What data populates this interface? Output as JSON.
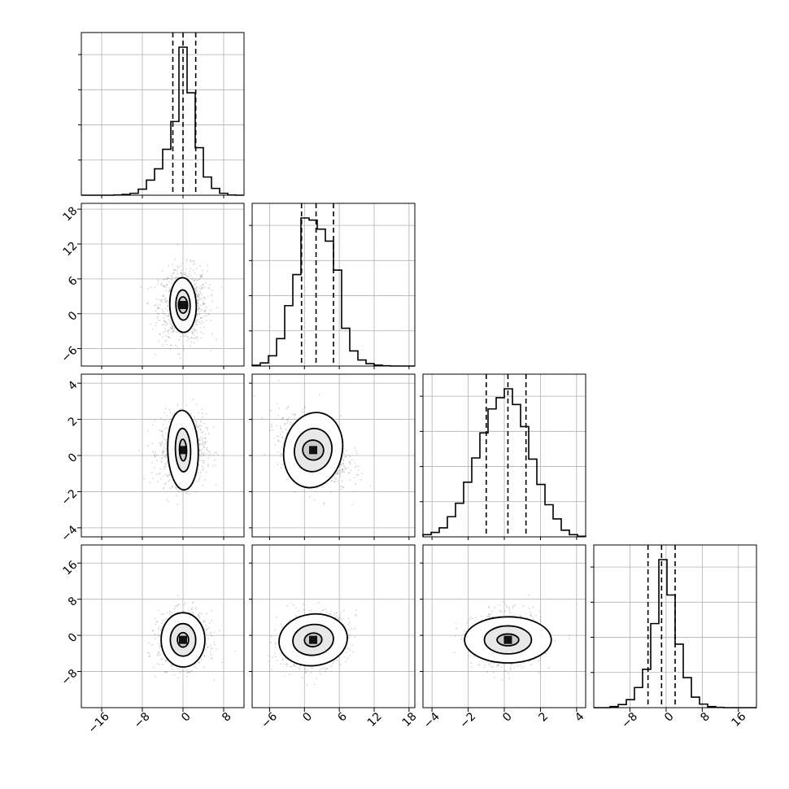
{
  "chart_data": {
    "type": "corner",
    "n_params": 4,
    "grid": true,
    "quantile_style": "dashed",
    "contour_levels": 4,
    "params": [
      {
        "index": 0,
        "label": "",
        "range": [
          -20,
          12
        ],
        "ticks": [
          -16,
          -8,
          0,
          8
        ],
        "tick_labels": [
          "−16",
          "−8",
          "0",
          "8"
        ],
        "quantiles": [
          -2,
          0,
          2.5
        ],
        "hist": {
          "edges": [
            -20,
            -18.4,
            -16.8,
            -15.2,
            -13.6,
            -12,
            -10.4,
            -8.8,
            -7.2,
            -5.6,
            -4,
            -2.4,
            -0.8,
            0.8,
            2.4,
            4,
            5.6,
            7.2,
            8.8,
            10.4,
            12
          ],
          "counts": [
            0,
            0,
            0,
            0,
            0.2,
            0.5,
            1.3,
            4.1,
            10.2,
            17.8,
            31,
            49.8,
            100,
            69.2,
            32.1,
            12.3,
            4.6,
            1.3,
            0.2,
            0,
            0
          ]
        }
      },
      {
        "index": 1,
        "label": "",
        "range": [
          -9,
          19
        ],
        "ticks": [
          -6,
          0,
          6,
          12,
          18
        ],
        "tick_labels": [
          "−6",
          "0",
          "6",
          "12",
          "18"
        ],
        "quantiles": [
          -0.5,
          2,
          5
        ],
        "hist": {
          "edges": [
            -9,
            -7.6,
            -6.2,
            -4.8,
            -3.4,
            -2,
            -0.6,
            0.8,
            2.2,
            3.6,
            5,
            6.4,
            7.8,
            9.2,
            10.6,
            12,
            13.4,
            14.8,
            16.2,
            17.6,
            19
          ],
          "counts": [
            0.5,
            2.1,
            6.9,
            18.5,
            40.8,
            61.8,
            100,
            98.6,
            92.5,
            84.4,
            64.8,
            25.5,
            10.2,
            4.1,
            1.6,
            0.6,
            0.2,
            0,
            0,
            0
          ]
        }
      },
      {
        "index": 2,
        "label": "",
        "range": [
          -4.5,
          4.5
        ],
        "ticks": [
          -4,
          -2,
          0,
          2,
          4
        ],
        "tick_labels": [
          "−4",
          "−2",
          "0",
          "2",
          "4"
        ],
        "quantiles": [
          -1,
          0.2,
          1.2
        ],
        "hist": {
          "edges": [
            -4.5,
            -4.05,
            -3.6,
            -3.15,
            -2.7,
            -2.25,
            -1.8,
            -1.35,
            -0.9,
            -0.45,
            0,
            0.45,
            0.9,
            1.35,
            1.8,
            2.25,
            2.7,
            3.15,
            3.6,
            4.05,
            4.5
          ],
          "counts": [
            1.5,
            3,
            6.1,
            13.6,
            22.7,
            36.9,
            53.3,
            70.2,
            86.4,
            94,
            100,
            89.4,
            74.5,
            52.5,
            35.4,
            21.7,
            12.1,
            4.5,
            1.5,
            0.4
          ]
        }
      },
      {
        "index": 3,
        "label": "",
        "range": [
          -16,
          20
        ],
        "ticks": [
          -8,
          0,
          8,
          16
        ],
        "tick_labels": [
          "−8",
          "0",
          "8",
          "16"
        ],
        "quantiles": [
          -4,
          -1,
          2
        ],
        "hist": {
          "edges": [
            -16,
            -14.2,
            -12.4,
            -10.6,
            -8.8,
            -7,
            -5.2,
            -3.4,
            -1.6,
            0.2,
            2,
            3.8,
            5.6,
            7.4,
            9.2,
            11,
            12.8,
            14.6,
            16.4,
            18.2,
            20
          ],
          "counts": [
            0,
            0,
            0.7,
            2.1,
            5.4,
            13.6,
            25.9,
            56.8,
            100,
            76.1,
            42.9,
            20.3,
            7.1,
            2.4,
            0.7,
            0.2,
            0,
            0,
            0,
            0
          ]
        }
      }
    ],
    "pairs": [
      {
        "row": 1,
        "col": 0,
        "center": [
          0,
          1.5
        ],
        "spread": [
          2.4,
          3.2
        ],
        "rho": 0.05,
        "contours": [
          {
            "rx": 0.9,
            "ry": 1.4,
            "pts": 14
          },
          {
            "rx": 1.4,
            "ry": 2.6,
            "pts": 22
          },
          {
            "rx": 2.6,
            "ry": 4.7,
            "pts": 30
          }
        ]
      },
      {
        "row": 2,
        "col": 0,
        "center": [
          0,
          0.3
        ],
        "spread": [
          2.3,
          0.95
        ],
        "rho": 0.05,
        "contours": [
          {
            "rx": 0.7,
            "ry": 0.6,
            "pts": 14
          },
          {
            "rx": 1.5,
            "ry": 1.2,
            "pts": 22
          },
          {
            "rx": 3.0,
            "ry": 2.2,
            "pts": 30
          }
        ]
      },
      {
        "row": 2,
        "col": 1,
        "center": [
          1.5,
          0.3
        ],
        "spread": [
          3.0,
          0.95
        ],
        "rho": -0.35,
        "contours": [
          {
            "rx": 1.8,
            "ry": 0.55,
            "pts": 14
          },
          {
            "rx": 3.2,
            "ry": 1.2,
            "pts": 22
          },
          {
            "rx": 5.0,
            "ry": 2.1,
            "pts": 30
          }
        ]
      },
      {
        "row": 3,
        "col": 0,
        "center": [
          0,
          -1
        ],
        "spread": [
          2.4,
          3.0
        ],
        "rho": 0.02,
        "contours": [
          {
            "rx": 1.1,
            "ry": 1.6,
            "pts": 14
          },
          {
            "rx": 2.5,
            "ry": 3.6,
            "pts": 22
          },
          {
            "rx": 4.3,
            "ry": 6.0,
            "pts": 30
          }
        ]
      },
      {
        "row": 3,
        "col": 1,
        "center": [
          1.5,
          -1
        ],
        "spread": [
          3.0,
          3.0
        ],
        "rho": 0.2,
        "contours": [
          {
            "rx": 1.5,
            "ry": 1.5,
            "pts": 14
          },
          {
            "rx": 3.5,
            "ry": 3.4,
            "pts": 22
          },
          {
            "rx": 5.9,
            "ry": 5.7,
            "pts": 30
          }
        ]
      },
      {
        "row": 3,
        "col": 2,
        "center": [
          0.2,
          -1
        ],
        "spread": [
          0.95,
          3.0
        ],
        "rho": 0.0,
        "contours": [
          {
            "rx": 0.6,
            "ry": 1.3,
            "pts": 14
          },
          {
            "rx": 1.3,
            "ry": 3.1,
            "pts": 22
          },
          {
            "rx": 2.4,
            "ry": 5.1,
            "pts": 30
          }
        ]
      }
    ],
    "x_tick_rows": [
      0,
      1,
      2,
      3
    ],
    "y_tick_cols_from_row": 1
  }
}
